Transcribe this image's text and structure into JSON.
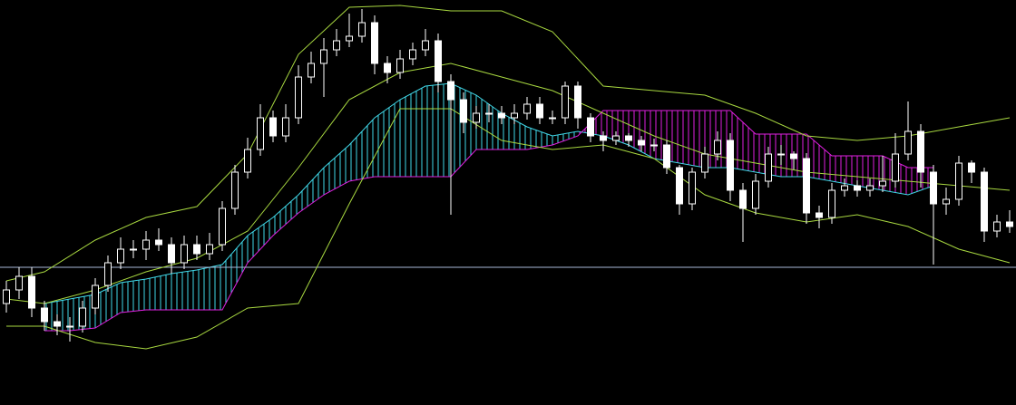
{
  "chart_data": {
    "type": "candlestick",
    "xlim": [
      -0.5,
      79.5
    ],
    "ylim": [
      0,
      447
    ],
    "background": "#000000",
    "up_color": "#000000",
    "down_color": "#ffffff",
    "wick_color": "#ffffff",
    "open": [
      112,
      127,
      142,
      107,
      92,
      87,
      87,
      107,
      132,
      157,
      172,
      172,
      182,
      177,
      157,
      177,
      167,
      177,
      217,
      257,
      282,
      317,
      297,
      317,
      362,
      377,
      392,
      402,
      407,
      422,
      377,
      367,
      382,
      392,
      402,
      357,
      337,
      312,
      322,
      322,
      317,
      322,
      332,
      317,
      317,
      352,
      317,
      297,
      292,
      297,
      292,
      287,
      287,
      262,
      222,
      257,
      277,
      292,
      237,
      217,
      247,
      277,
      277,
      272,
      212,
      207,
      237,
      242,
      237,
      242,
      247,
      277,
      302,
      257,
      222,
      227,
      267,
      257,
      192,
      202
    ],
    "high": [
      137,
      152,
      152,
      115,
      100,
      97,
      115,
      140,
      165,
      185,
      182,
      192,
      195,
      185,
      187,
      187,
      190,
      225,
      265,
      295,
      332,
      325,
      332,
      375,
      390,
      405,
      415,
      432,
      437,
      430,
      385,
      392,
      400,
      415,
      410,
      365,
      345,
      330,
      332,
      330,
      332,
      340,
      340,
      325,
      357,
      357,
      322,
      302,
      302,
      300,
      297,
      294,
      292,
      265,
      262,
      285,
      302,
      300,
      245,
      255,
      285,
      287,
      280,
      278,
      220,
      245,
      250,
      248,
      250,
      275,
      300,
      335,
      310,
      265,
      240,
      275,
      270,
      262,
      210,
      215
    ],
    "low": [
      102,
      117,
      97,
      82,
      77,
      70,
      80,
      100,
      125,
      150,
      162,
      160,
      170,
      145,
      150,
      160,
      160,
      170,
      210,
      250,
      275,
      290,
      290,
      310,
      355,
      340,
      385,
      395,
      400,
      365,
      355,
      360,
      375,
      385,
      345,
      210,
      300,
      305,
      312,
      310,
      310,
      315,
      310,
      310,
      310,
      305,
      290,
      280,
      287,
      285,
      280,
      280,
      255,
      210,
      215,
      250,
      270,
      225,
      180,
      210,
      240,
      265,
      260,
      200,
      195,
      200,
      230,
      230,
      230,
      235,
      240,
      270,
      240,
      155,
      210,
      220,
      245,
      180,
      185,
      190
    ],
    "close": [
      127,
      142,
      107,
      92,
      87,
      87,
      107,
      132,
      157,
      172,
      172,
      182,
      177,
      157,
      177,
      167,
      177,
      217,
      257,
      282,
      317,
      297,
      317,
      362,
      377,
      392,
      402,
      407,
      422,
      377,
      367,
      382,
      392,
      402,
      357,
      337,
      312,
      322,
      322,
      317,
      322,
      332,
      317,
      317,
      352,
      317,
      297,
      292,
      297,
      292,
      287,
      287,
      262,
      222,
      257,
      277,
      292,
      237,
      217,
      247,
      277,
      277,
      272,
      212,
      207,
      237,
      242,
      237,
      242,
      247,
      277,
      302,
      257,
      222,
      227,
      267,
      257,
      192,
      202,
      197
    ],
    "bands": {
      "color": "#a8d840",
      "x": [
        0,
        3,
        7,
        11,
        15,
        19,
        23,
        27,
        31,
        35,
        39,
        43,
        47,
        51,
        55,
        59,
        63,
        67,
        71,
        75,
        79
      ],
      "upper": [
        137,
        147,
        182,
        207,
        219,
        277,
        387,
        439,
        441,
        435,
        435,
        412,
        352,
        347,
        342,
        322,
        297,
        292,
        297,
        307,
        317
      ],
      "middle": [
        117,
        112,
        127,
        147,
        162,
        192,
        262,
        337,
        367,
        377,
        362,
        347,
        322,
        297,
        277,
        267,
        257,
        252,
        247,
        242,
        237
      ],
      "lower": [
        87,
        87,
        69,
        62,
        75,
        107,
        112,
        222,
        327,
        327,
        292,
        282,
        287,
        272,
        232,
        212,
        202,
        210,
        197,
        172,
        157
      ]
    },
    "cloud": {
      "x": [
        3,
        5,
        7,
        9,
        11,
        13,
        15,
        17,
        19,
        21,
        23,
        25,
        27,
        29,
        31,
        33,
        35,
        37,
        39,
        41,
        43,
        45,
        47,
        49,
        51,
        53,
        55,
        57,
        59,
        61,
        63,
        65,
        67,
        69,
        71,
        73
      ],
      "span_a": [
        112,
        117,
        122,
        135,
        139,
        145,
        149,
        155,
        187,
        207,
        232,
        262,
        287,
        317,
        337,
        352,
        355,
        342,
        322,
        307,
        297,
        302,
        297,
        287,
        272,
        267,
        262,
        262,
        257,
        252,
        252,
        247,
        242,
        237,
        232,
        242
      ],
      "span_b": [
        82,
        82,
        85,
        102,
        105,
        105,
        105,
        105,
        157,
        187,
        212,
        232,
        247,
        252,
        252,
        252,
        252,
        282,
        282,
        282,
        287,
        297,
        325,
        325,
        325,
        325,
        325,
        325,
        299,
        299,
        299,
        275,
        275,
        275,
        262,
        262
      ],
      "up_color": "#40d8e8",
      "down_color": "#e020e0"
    },
    "hline": {
      "value": 152,
      "color": "#a8b8d8"
    }
  }
}
